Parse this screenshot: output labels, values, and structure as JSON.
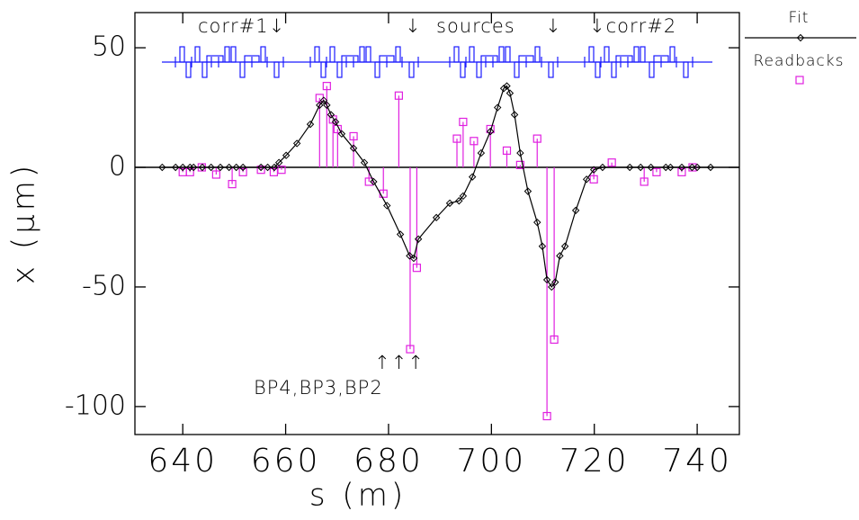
{
  "chart_data": {
    "type": "scatter",
    "xlabel": "s (m)",
    "ylabel": "x (μm)",
    "xlim": [
      630.7,
      748.2
    ],
    "ylim": [
      -111.7,
      64.7
    ],
    "xticks": [
      640,
      660,
      680,
      700,
      720,
      740
    ],
    "yticks": [
      -100,
      -50,
      0,
      50
    ],
    "annotations": [
      "corr#1↓",
      "↓",
      "sources",
      "↓",
      "↓corr#2",
      "↑↑↑",
      "BP4,BP3,BP2"
    ],
    "series": [
      {
        "name": "Fit",
        "color": "#000000",
        "style": "line",
        "x": [
          636,
          638.6,
          640,
          641.4,
          642.1,
          643.8,
          645.5,
          647.3,
          649,
          650.4,
          651.7,
          655.2,
          656.5,
          657.8,
          658.7,
          660.1,
          662.2,
          664.8,
          666.6,
          667.4,
          668,
          668.8,
          669.7,
          670.9,
          673.2,
          675.3,
          677.1,
          679.7,
          682.3,
          684.1,
          684.9,
          685.8,
          689.3,
          691.9,
          693.7,
          694.5,
          696.3,
          698,
          699.8,
          701.2,
          702.4,
          703,
          703.6,
          704.5,
          705.6,
          707.1,
          708.9,
          709.9,
          710.8,
          711.7,
          712.4,
          713.3,
          714.3,
          716.4,
          718.5,
          719.9,
          721.6,
          726.9,
          729,
          731,
          733.9,
          734.8,
          737,
          739,
          740,
          742.6
        ],
        "y": [
          0,
          0,
          0,
          0,
          0,
          0,
          0,
          0,
          0,
          0,
          0,
          0,
          0,
          0,
          2,
          5,
          10,
          18,
          26,
          28,
          26,
          22,
          19,
          14,
          8,
          2,
          -6,
          -16,
          -28,
          -37,
          -38,
          -30,
          -21,
          -15,
          -14,
          -12,
          -4,
          6,
          15,
          25,
          33,
          34,
          31,
          22,
          6,
          -10,
          -23,
          -33,
          -47,
          -50,
          -48,
          -37,
          -33,
          -18,
          -5,
          -1,
          0,
          0,
          0,
          0,
          0,
          0,
          0,
          0,
          0,
          0
        ]
      },
      {
        "name": "Readbacks",
        "color": "#e020e0",
        "style": "stem",
        "x": [
          640,
          641.4,
          643.7,
          646.5,
          649.6,
          651.7,
          655.2,
          657.7,
          659.2,
          666.6,
          668,
          669.2,
          670.1,
          673.2,
          676.2,
          679,
          682,
          684.2,
          685.5,
          693.3,
          694.5,
          696.6,
          699.8,
          703,
          705.6,
          708.9,
          710.8,
          712.2,
          719.9,
          723.4,
          729.7,
          732.1,
          737,
          739.1
        ],
        "y": [
          -2,
          -2,
          0,
          -3,
          -7,
          -2,
          -1,
          -2,
          -1,
          29,
          34,
          20,
          16,
          13,
          -6,
          -11,
          30,
          -76,
          -42,
          12,
          19,
          11,
          16,
          7,
          1,
          12,
          -104,
          -72,
          -5,
          2,
          -6,
          -2,
          -2,
          0
        ]
      }
    ]
  }
}
